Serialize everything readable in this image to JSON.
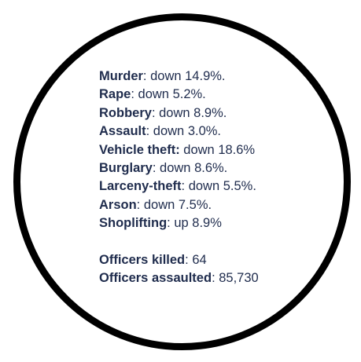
{
  "crime_stats": [
    {
      "label": "Murder",
      "sep": ":",
      "value": " down 14.9%."
    },
    {
      "label": "Rape",
      "sep": ":",
      "value": " down 5.2%."
    },
    {
      "label": "Robbery",
      "sep": ":",
      "value": " down 8.9%."
    },
    {
      "label": "Assault",
      "sep": ":",
      "value": " down 3.0%."
    },
    {
      "label": "Vehicle theft:",
      "sep": "",
      "value": " down 18.6%"
    },
    {
      "label": "Burglary",
      "sep": ":",
      "value": " down 8.6%."
    },
    {
      "label": "Larceny-theft",
      "sep": ":",
      "value": " down 5.5%."
    },
    {
      "label": "Arson",
      "sep": ":",
      "value": " down 7.5%."
    },
    {
      "label": "Shoplifting",
      "sep": ":",
      "value": " up 8.9%"
    }
  ],
  "officer_stats": [
    {
      "label": "Officers killed",
      "sep": ":",
      "value": " 64"
    },
    {
      "label": "Officers assaulted",
      "sep": ":",
      "value": " 85,730"
    }
  ],
  "colors": {
    "text": "#1f2c4d",
    "circle_border": "#000000",
    "background": "#ffffff"
  }
}
